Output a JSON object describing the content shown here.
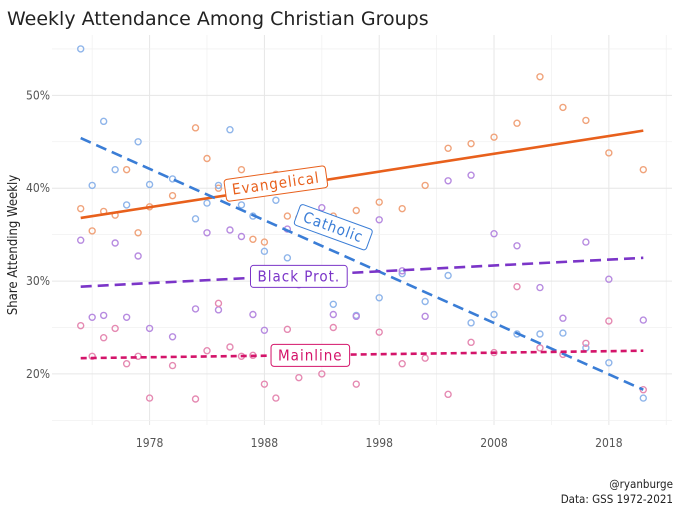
{
  "chart_data": {
    "type": "scatter",
    "title": "Weekly Attendance Among Christian Groups",
    "xlabel": "",
    "ylabel": "Share Attending Weekly",
    "x_ticks": [
      "1978",
      "1988",
      "1998",
      "2008",
      "2018"
    ],
    "y_ticks": [
      "20%",
      "30%",
      "40%",
      "50%"
    ],
    "xlim": [
      1969.5,
      2023.5
    ],
    "ylim": [
      14.5,
      56.5
    ],
    "grid": true,
    "caption": [
      "@ryanburge",
      "Data: GSS 1972-2021"
    ],
    "series": [
      {
        "name": "Evangelical",
        "color": "#e8601c",
        "point_color": "#f0a37b",
        "trend": {
          "style": "solid",
          "start": [
            1972,
            36.8
          ],
          "end": [
            2021,
            46.2
          ]
        },
        "label_anchor": [
          1989,
          40.5
        ],
        "label_angle": -8,
        "points": [
          [
            1972,
            37.8
          ],
          [
            1973,
            35.4
          ],
          [
            1974,
            37.5
          ],
          [
            1975,
            37.1
          ],
          [
            1976,
            42.0
          ],
          [
            1977,
            35.2
          ],
          [
            1978,
            38.0
          ],
          [
            1980,
            39.2
          ],
          [
            1982,
            46.5
          ],
          [
            1983,
            43.2
          ],
          [
            1984,
            40.0
          ],
          [
            1985,
            39.5
          ],
          [
            1986,
            42.0
          ],
          [
            1987,
            34.5
          ],
          [
            1988,
            34.2
          ],
          [
            1989,
            41.5
          ],
          [
            1990,
            37.0
          ],
          [
            1991,
            36.8
          ],
          [
            1993,
            36.0
          ],
          [
            1994,
            37.0
          ],
          [
            1996,
            37.6
          ],
          [
            1998,
            38.5
          ],
          [
            2000,
            37.8
          ],
          [
            2002,
            40.3
          ],
          [
            2004,
            44.3
          ],
          [
            2006,
            44.8
          ],
          [
            2008,
            45.5
          ],
          [
            2010,
            47.0
          ],
          [
            2012,
            52.0
          ],
          [
            2014,
            48.7
          ],
          [
            2016,
            47.3
          ],
          [
            2018,
            43.8
          ],
          [
            2021,
            42.0
          ]
        ]
      },
      {
        "name": "Catholic",
        "color": "#3a7dd6",
        "point_color": "#8fb5ea",
        "trend": {
          "style": "dashed",
          "start": [
            1972,
            45.4
          ],
          "end": [
            2021,
            18.3
          ]
        },
        "label_anchor": [
          1994,
          35.8
        ],
        "label_angle": 20,
        "points": [
          [
            1972,
            55.0
          ],
          [
            1973,
            40.3
          ],
          [
            1974,
            47.2
          ],
          [
            1975,
            42.0
          ],
          [
            1976,
            38.2
          ],
          [
            1977,
            45.0
          ],
          [
            1978,
            40.4
          ],
          [
            1980,
            41.0
          ],
          [
            1982,
            36.7
          ],
          [
            1983,
            38.4
          ],
          [
            1984,
            40.3
          ],
          [
            1985,
            46.3
          ],
          [
            1986,
            38.2
          ],
          [
            1987,
            37.0
          ],
          [
            1988,
            33.2
          ],
          [
            1989,
            38.7
          ],
          [
            1990,
            32.5
          ],
          [
            1991,
            30.4
          ],
          [
            1993,
            30.9
          ],
          [
            1994,
            27.5
          ],
          [
            1996,
            26.3
          ],
          [
            1998,
            28.2
          ],
          [
            2000,
            30.8
          ],
          [
            2002,
            27.8
          ],
          [
            2004,
            30.6
          ],
          [
            2006,
            25.5
          ],
          [
            2008,
            26.4
          ],
          [
            2010,
            24.3
          ],
          [
            2012,
            24.3
          ],
          [
            2014,
            24.4
          ],
          [
            2016,
            22.8
          ],
          [
            2018,
            21.2
          ],
          [
            2021,
            17.4
          ]
        ]
      },
      {
        "name": "Black Prot.",
        "color": "#7b35c8",
        "point_color": "#b78be0",
        "trend": {
          "style": "dashed",
          "start": [
            1972,
            29.4
          ],
          "end": [
            2021,
            32.5
          ]
        },
        "label_anchor": [
          1991,
          30.5
        ],
        "label_angle": 0,
        "points": [
          [
            1972,
            34.4
          ],
          [
            1973,
            26.1
          ],
          [
            1974,
            26.3
          ],
          [
            1975,
            34.1
          ],
          [
            1976,
            26.1
          ],
          [
            1977,
            32.7
          ],
          [
            1978,
            24.9
          ],
          [
            1980,
            24.0
          ],
          [
            1982,
            27.0
          ],
          [
            1983,
            35.2
          ],
          [
            1984,
            26.9
          ],
          [
            1985,
            35.5
          ],
          [
            1986,
            34.8
          ],
          [
            1987,
            26.4
          ],
          [
            1988,
            24.7
          ],
          [
            1990,
            35.6
          ],
          [
            1991,
            29.6
          ],
          [
            1993,
            37.9
          ],
          [
            1994,
            26.4
          ],
          [
            1996,
            26.2
          ],
          [
            1998,
            36.6
          ],
          [
            2000,
            31.1
          ],
          [
            2002,
            26.2
          ],
          [
            2004,
            40.8
          ],
          [
            2006,
            41.4
          ],
          [
            2008,
            35.1
          ],
          [
            2010,
            33.8
          ],
          [
            2012,
            29.3
          ],
          [
            2014,
            26.0
          ],
          [
            2016,
            34.2
          ],
          [
            2018,
            30.2
          ],
          [
            2021,
            25.8
          ]
        ]
      },
      {
        "name": "Mainline",
        "color": "#d4146a",
        "point_color": "#e58ab2",
        "trend": {
          "style": "dotted",
          "start": [
            1972,
            21.7
          ],
          "end": [
            2021,
            22.5
          ]
        },
        "label_anchor": [
          1992,
          22.0
        ],
        "label_angle": 0,
        "points": [
          [
            1972,
            25.2
          ],
          [
            1973,
            21.9
          ],
          [
            1974,
            23.9
          ],
          [
            1975,
            24.9
          ],
          [
            1976,
            21.1
          ],
          [
            1977,
            21.9
          ],
          [
            1978,
            17.4
          ],
          [
            1980,
            20.9
          ],
          [
            1982,
            17.3
          ],
          [
            1983,
            22.5
          ],
          [
            1984,
            27.6
          ],
          [
            1985,
            22.9
          ],
          [
            1986,
            21.9
          ],
          [
            1987,
            22.0
          ],
          [
            1988,
            18.9
          ],
          [
            1989,
            17.4
          ],
          [
            1990,
            24.8
          ],
          [
            1991,
            19.6
          ],
          [
            1993,
            20.0
          ],
          [
            1994,
            25.0
          ],
          [
            1996,
            18.9
          ],
          [
            1998,
            24.5
          ],
          [
            2000,
            21.1
          ],
          [
            2002,
            21.7
          ],
          [
            2004,
            17.8
          ],
          [
            2006,
            23.4
          ],
          [
            2008,
            22.3
          ],
          [
            2010,
            29.4
          ],
          [
            2012,
            22.8
          ],
          [
            2014,
            22.1
          ],
          [
            2016,
            23.3
          ],
          [
            2018,
            25.7
          ],
          [
            2021,
            18.3
          ]
        ]
      }
    ]
  }
}
